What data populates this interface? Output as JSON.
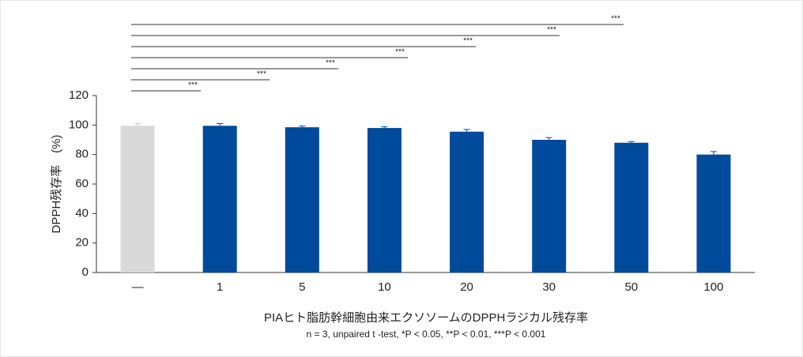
{
  "chart_data": {
    "type": "bar",
    "y_label": "DPPH残存率　(%)",
    "caption": "PIAヒト脂肪幹細胞由来エクソソームのDPPHラジカル残存率",
    "note": "n = 3, unpaired t -test, *P < 0.05, **P < 0.01, ***P < 0.001",
    "categories": [
      "—",
      "1",
      "5",
      "10",
      "20",
      "30",
      "50",
      "100"
    ],
    "values": [
      99.5,
      99.5,
      98.5,
      98,
      95.5,
      90,
      88,
      80
    ],
    "errors": [
      1.5,
      1.5,
      0.8,
      0.8,
      1.5,
      1.5,
      0.8,
      2
    ],
    "colors": [
      "#d9d9d9",
      "#004a9c",
      "#004a9c",
      "#004a9c",
      "#004a9c",
      "#004a9c",
      "#004a9c",
      "#004a9c"
    ],
    "ylim": [
      0,
      120
    ],
    "yticks": [
      0,
      20,
      40,
      60,
      80,
      100,
      120
    ],
    "significance": [
      {
        "category": "1",
        "label": "***"
      },
      {
        "category": "5",
        "label": "***"
      },
      {
        "category": "10",
        "label": "***"
      },
      {
        "category": "20",
        "label": "***"
      },
      {
        "category": "30",
        "label": "***"
      },
      {
        "category": "50",
        "label": "***"
      },
      {
        "category": "100",
        "label": "***"
      }
    ]
  }
}
